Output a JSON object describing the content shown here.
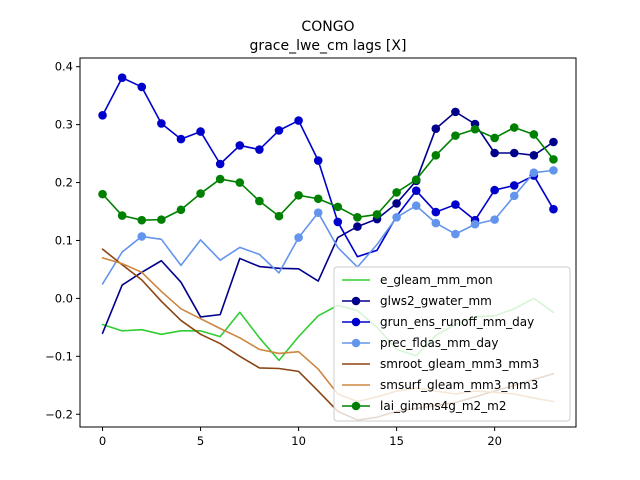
{
  "chart_data": {
    "type": "line",
    "title": "CONGO",
    "subtitle": "grace_lwe_cm lags [X]",
    "xlabel": "",
    "ylabel": "",
    "xlim": [
      -1.15,
      24.15
    ],
    "ylim": [
      -0.222,
      0.415
    ],
    "xticks": [
      0,
      5,
      10,
      15,
      20
    ],
    "yticks": [
      -0.2,
      -0.1,
      0.0,
      0.1,
      0.2,
      0.3,
      0.4
    ],
    "ytick_labels": [
      "−0.2",
      "−0.1",
      "0.0",
      "0.1",
      "0.2",
      "0.3",
      "0.4"
    ],
    "legend_position": "lower-right",
    "x": [
      0,
      1,
      2,
      3,
      4,
      5,
      6,
      7,
      8,
      9,
      10,
      11,
      12,
      13,
      14,
      15,
      16,
      17,
      18,
      19,
      20,
      21,
      22,
      23
    ],
    "series": [
      {
        "name": "e_gleam_mm_mon",
        "color": "#32cd32",
        "markers": [],
        "values": [
          -0.045,
          -0.056,
          -0.054,
          -0.062,
          -0.056,
          -0.056,
          -0.066,
          -0.024,
          -0.068,
          -0.107,
          -0.066,
          -0.03,
          -0.012,
          -0.021,
          -0.05,
          -0.088,
          -0.099,
          -0.064,
          -0.045,
          -0.032,
          -0.03,
          -0.018,
          0.0,
          -0.024
        ]
      },
      {
        "name": "glws2_gwater_mm",
        "color": "#00008b",
        "markers": [
          13,
          14,
          15,
          16,
          17,
          18,
          19,
          20,
          21,
          22,
          23
        ],
        "values": [
          -0.06,
          0.023,
          0.045,
          0.065,
          0.028,
          -0.032,
          -0.028,
          0.069,
          0.055,
          0.052,
          0.051,
          0.03,
          0.105,
          0.124,
          0.137,
          0.164,
          0.203,
          0.293,
          0.322,
          0.301,
          0.251,
          0.251,
          0.247,
          0.27
        ]
      },
      {
        "name": "grun_ens_runoff_mm_day",
        "color": "#0000cd",
        "markers": [
          0,
          1,
          2,
          3,
          4,
          5,
          6,
          7,
          8,
          9,
          10,
          11,
          12,
          16,
          17,
          18,
          19,
          20,
          21,
          22,
          23
        ],
        "values": [
          0.316,
          0.381,
          0.365,
          0.302,
          0.275,
          0.288,
          0.232,
          0.264,
          0.257,
          0.29,
          0.307,
          0.238,
          0.132,
          0.072,
          0.083,
          0.142,
          0.186,
          0.149,
          0.162,
          0.135,
          0.187,
          0.195,
          0.212,
          0.154
        ]
      },
      {
        "name": "prec_fldas_mm_day",
        "color": "#6495ed",
        "markers": [
          2,
          10,
          11,
          15,
          16,
          17,
          18,
          19,
          20,
          21,
          22,
          23
        ],
        "values": [
          0.025,
          0.08,
          0.107,
          0.102,
          0.057,
          0.101,
          0.066,
          0.088,
          0.076,
          0.044,
          0.105,
          0.148,
          0.088,
          0.054,
          0.093,
          0.14,
          0.16,
          0.13,
          0.111,
          0.128,
          0.136,
          0.177,
          0.217,
          0.221
        ]
      },
      {
        "name": "smroot_gleam_mm3_mm3",
        "color": "#8b4513",
        "markers": [],
        "values": [
          0.085,
          0.058,
          0.032,
          -0.005,
          -0.038,
          -0.062,
          -0.078,
          -0.1,
          -0.12,
          -0.121,
          -0.126,
          -0.16,
          -0.195,
          -0.21,
          -0.205,
          -0.195,
          -0.19,
          -0.185,
          -0.18,
          -0.17,
          -0.16,
          -0.15,
          -0.14,
          -0.13
        ]
      },
      {
        "name": "smsurf_gleam_mm3_mm3",
        "color": "#cd853f",
        "markers": [],
        "values": [
          0.07,
          0.06,
          0.045,
          0.012,
          -0.018,
          -0.035,
          -0.052,
          -0.068,
          -0.088,
          -0.095,
          -0.092,
          -0.122,
          -0.165,
          -0.178,
          -0.17,
          -0.16,
          -0.155,
          -0.16,
          -0.165,
          -0.16,
          -0.162,
          -0.165,
          -0.172,
          -0.178
        ]
      },
      {
        "name": "lai_gimms4g_m2_m2",
        "color": "#008000",
        "markers": [
          0,
          1,
          2,
          3,
          4,
          5,
          6,
          7,
          8,
          9,
          10,
          11,
          12,
          13,
          14,
          15,
          16,
          17,
          18,
          19,
          20,
          21,
          22,
          23
        ],
        "values": [
          0.18,
          0.143,
          0.135,
          0.136,
          0.153,
          0.181,
          0.206,
          0.2,
          0.168,
          0.142,
          0.178,
          0.172,
          0.158,
          0.14,
          0.145,
          0.183,
          0.205,
          0.247,
          0.281,
          0.292,
          0.277,
          0.295,
          0.283,
          0.24
        ]
      }
    ]
  }
}
